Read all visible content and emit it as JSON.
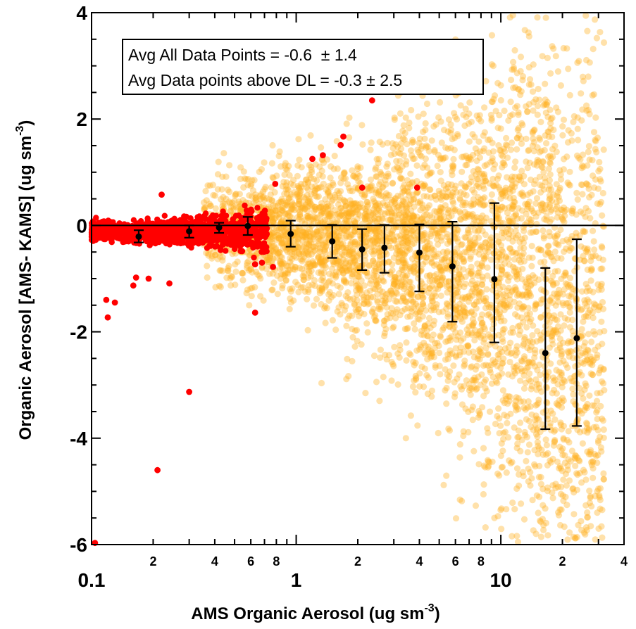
{
  "chart_data": {
    "type": "scatter",
    "title": "",
    "xlabel": "AMS Organic Aerosol (ug sm",
    "xlabel_superscript": "-3",
    "xlabel_suffix": ")",
    "ylabel": "Organic Aerosol [AMS- KAMS] (ug sm",
    "ylabel_superscript": "-3",
    "ylabel_suffix": ")",
    "x_scale": "log",
    "xlim": [
      0.1,
      40
    ],
    "ylim": [
      -6,
      4
    ],
    "x_major_ticks": [
      {
        "value": 0.1,
        "label": "0.1"
      },
      {
        "value": 1,
        "label": "1"
      },
      {
        "value": 10,
        "label": "10"
      }
    ],
    "x_minor_ticks": [
      {
        "value": 0.2,
        "label": "2"
      },
      {
        "value": 0.3,
        "label": ""
      },
      {
        "value": 0.4,
        "label": "4"
      },
      {
        "value": 0.5,
        "label": ""
      },
      {
        "value": 0.6,
        "label": "6"
      },
      {
        "value": 0.7,
        "label": ""
      },
      {
        "value": 0.8,
        "label": "8"
      },
      {
        "value": 0.9,
        "label": ""
      },
      {
        "value": 2,
        "label": "2"
      },
      {
        "value": 3,
        "label": ""
      },
      {
        "value": 4,
        "label": "4"
      },
      {
        "value": 5,
        "label": ""
      },
      {
        "value": 6,
        "label": "6"
      },
      {
        "value": 7,
        "label": ""
      },
      {
        "value": 8,
        "label": "8"
      },
      {
        "value": 9,
        "label": ""
      },
      {
        "value": 20,
        "label": "2"
      },
      {
        "value": 30,
        "label": ""
      },
      {
        "value": 40,
        "label": "4"
      }
    ],
    "y_ticks": [
      {
        "value": 4,
        "label": "4"
      },
      {
        "value": 2,
        "label": "2"
      },
      {
        "value": 0,
        "label": "0"
      },
      {
        "value": -2,
        "label": "-2"
      },
      {
        "value": -4,
        "label": "-4"
      },
      {
        "value": -6,
        "label": "-6"
      }
    ],
    "zero_line": 0,
    "annotation": {
      "line1": "Avg All Data Points = -0.6  ± 1.4",
      "line2": "Avg Data points above DL = -0.3 ± 2.5"
    },
    "colors": {
      "all_points": "#ffb020",
      "below_dl_points": "#ff0000",
      "binned_means": "#000000"
    },
    "series": [
      {
        "kind": "binned_mean_with_std",
        "points": [
          {
            "x": 0.17,
            "y": -0.21,
            "lo": -0.32,
            "hi": -0.09
          },
          {
            "x": 0.3,
            "y": -0.11,
            "lo": -0.23,
            "hi": 0.0
          },
          {
            "x": 0.42,
            "y": -0.04,
            "lo": -0.14,
            "hi": 0.05
          },
          {
            "x": 0.58,
            "y": -0.01,
            "lo": -0.18,
            "hi": 0.16
          },
          {
            "x": 0.94,
            "y": -0.16,
            "lo": -0.4,
            "hi": 0.09
          },
          {
            "x": 1.5,
            "y": -0.3,
            "lo": -0.61,
            "hi": 0.01
          },
          {
            "x": 2.1,
            "y": -0.45,
            "lo": -0.84,
            "hi": -0.07
          },
          {
            "x": 2.7,
            "y": -0.42,
            "lo": -0.89,
            "hi": 0.01
          },
          {
            "x": 4.0,
            "y": -0.51,
            "lo": -1.24,
            "hi": 0.02
          },
          {
            "x": 5.8,
            "y": -0.77,
            "lo": -1.81,
            "hi": 0.07
          },
          {
            "x": 9.3,
            "y": -1.01,
            "lo": -2.2,
            "hi": 0.42
          },
          {
            "x": 16.5,
            "y": -2.4,
            "lo": -3.83,
            "hi": -0.8
          },
          {
            "x": 23.5,
            "y": -2.12,
            "lo": -3.77,
            "hi": -0.26
          }
        ]
      },
      {
        "kind": "red_outliers",
        "points": [
          {
            "x": 0.104,
            "y": -5.97
          },
          {
            "x": 0.21,
            "y": -4.6
          },
          {
            "x": 0.3,
            "y": -3.13
          },
          {
            "x": 0.63,
            "y": -1.64
          },
          {
            "x": 0.12,
            "y": -1.73
          },
          {
            "x": 0.13,
            "y": -1.45
          },
          {
            "x": 0.118,
            "y": -1.4
          },
          {
            "x": 0.16,
            "y": -1.13
          },
          {
            "x": 0.165,
            "y": -0.98
          },
          {
            "x": 0.24,
            "y": -1.09
          },
          {
            "x": 0.19,
            "y": -1.0
          },
          {
            "x": 0.77,
            "y": -0.78
          },
          {
            "x": 0.68,
            "y": -0.7
          },
          {
            "x": 0.63,
            "y": -0.73
          },
          {
            "x": 2.1,
            "y": 0.71
          },
          {
            "x": 3.9,
            "y": 0.71
          },
          {
            "x": 2.35,
            "y": 2.35
          },
          {
            "x": 1.7,
            "y": 1.67
          },
          {
            "x": 1.65,
            "y": 1.51
          },
          {
            "x": 1.35,
            "y": 1.32
          },
          {
            "x": 1.2,
            "y": 1.25
          },
          {
            "x": 0.22,
            "y": 0.58
          },
          {
            "x": 0.79,
            "y": 0.78
          }
        ]
      }
    ]
  }
}
